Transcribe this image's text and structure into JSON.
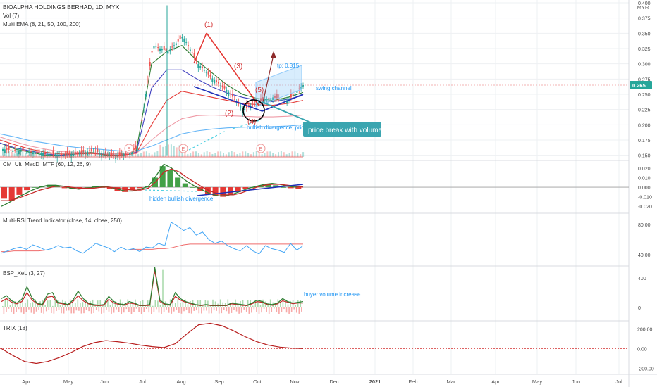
{
  "header": {
    "symbol_title": "BIOALPHA HOLDINGS BERHAD, 1D, MYX",
    "vol_label": "Vol (7)",
    "ema_label": "Multi EMA (8, 21, 50, 100, 200)"
  },
  "currency": "MYR",
  "colors": {
    "up": "#26a69a",
    "down": "#ef5350",
    "trendline_red": "#e53935",
    "trendline_blue": "#1e2fb8",
    "channel": "#90caf9",
    "annotation": "#2196f3",
    "callout": "#3aa5b0",
    "grid": "#eef0f3",
    "axis_text": "#4a4a4a"
  },
  "x_axis": {
    "labels": [
      "Apr",
      "May",
      "Jun",
      "Jul",
      "Aug",
      "Sep",
      "Oct",
      "Nov",
      "Dec",
      "2021",
      "Feb",
      "Mar",
      "Apr",
      "May",
      "Jun",
      "Jul"
    ]
  },
  "chart_data": [
    {
      "type": "line",
      "panel": "price",
      "title": "BIOALPHA HOLDINGS BERHAD, 1D, MYX",
      "y_ticks": [
        0.15,
        0.175,
        0.2,
        0.225,
        0.25,
        0.275,
        0.3,
        0.325,
        0.35,
        0.375,
        0.4
      ],
      "ylim": [
        0.145,
        0.4
      ],
      "last_price": "0.265",
      "annotations": [
        {
          "id": "wave1",
          "text": "(1)"
        },
        {
          "id": "wave2",
          "text": "(2)"
        },
        {
          "id": "wave3",
          "text": "(3)"
        },
        {
          "id": "wave4",
          "text": "(4)"
        },
        {
          "id": "wave5",
          "text": "(5)"
        },
        {
          "id": "target",
          "text": "tp: 0.315"
        },
        {
          "id": "channel",
          "text": "swing channel"
        },
        {
          "id": "divergence",
          "text": "bullish divergence, price"
        },
        {
          "id": "callout",
          "text": "price break with volume"
        }
      ],
      "markers": [
        "E",
        "E",
        "E"
      ],
      "ema_series": [
        {
          "color": "#2e7d32",
          "values": [
            0.17,
            0.16,
            0.155,
            0.15,
            0.15,
            0.152,
            0.155,
            0.15,
            0.15,
            0.158,
            0.3,
            0.32,
            0.33,
            0.305,
            0.285,
            0.265,
            0.25,
            0.243,
            0.24,
            0.245,
            0.253
          ]
        },
        {
          "color": "#3f3fbf",
          "values": [
            0.17,
            0.162,
            0.157,
            0.152,
            0.15,
            0.152,
            0.154,
            0.151,
            0.15,
            0.155,
            0.26,
            0.29,
            0.29,
            0.275,
            0.262,
            0.252,
            0.245,
            0.24,
            0.238,
            0.242,
            0.248
          ]
        },
        {
          "color": "#e53935",
          "values": [
            0.175,
            0.167,
            0.16,
            0.155,
            0.152,
            0.152,
            0.153,
            0.151,
            0.15,
            0.153,
            0.2,
            0.24,
            0.255,
            0.25,
            0.245,
            0.24,
            0.235,
            0.233,
            0.232,
            0.235,
            0.24
          ]
        },
        {
          "color": "#ef9aa6",
          "values": [
            0.18,
            0.172,
            0.165,
            0.16,
            0.156,
            0.155,
            0.154,
            0.153,
            0.152,
            0.153,
            0.175,
            0.195,
            0.21,
            0.215,
            0.216,
            0.215,
            0.214,
            0.213,
            0.213,
            0.214,
            0.216
          ]
        },
        {
          "color": "#64b5f6",
          "values": [
            0.185,
            0.18,
            0.174,
            0.17,
            0.166,
            0.163,
            0.161,
            0.159,
            0.157,
            0.157,
            0.165,
            0.175,
            0.185,
            0.19,
            0.193,
            0.195,
            0.196,
            0.197,
            0.197,
            0.198,
            0.2
          ]
        }
      ],
      "close": [
        0.16,
        0.157,
        0.155,
        0.152,
        0.15,
        0.153,
        0.158,
        0.15,
        0.15,
        0.162,
        0.33,
        0.32,
        0.345,
        0.3,
        0.275,
        0.255,
        0.225,
        0.238,
        0.245,
        0.24,
        0.265
      ]
    },
    {
      "type": "bar",
      "panel": "macd",
      "title": "CM_Ult_MacD_MTF (60, 12, 26, 9)",
      "y_ticks": [
        0.02,
        0.01,
        0.0,
        -0.01,
        -0.02
      ],
      "ylim": [
        -0.025,
        0.028
      ],
      "annotation": "hidden bullish divergence",
      "histogram": [
        -0.012,
        -0.014,
        -0.008,
        -0.003,
        0.0,
        0.001,
        0.002,
        0.001,
        -0.001,
        -0.002,
        -0.001,
        0.0,
        0.001,
        0.0,
        -0.002,
        -0.004,
        -0.005,
        -0.003,
        -0.001,
        0.001,
        0.01,
        0.022,
        0.018,
        0.01,
        0.004,
        0.0,
        -0.004,
        -0.007,
        -0.009,
        -0.01,
        -0.008,
        -0.005,
        -0.002,
        0.0,
        0.002,
        0.003,
        0.002,
        0.0,
        -0.001,
        -0.002
      ],
      "macd_line": [
        -0.02,
        -0.016,
        -0.011,
        -0.007,
        -0.003,
        0.0,
        0.002,
        0.002,
        0.001,
        -0.001,
        -0.002,
        -0.001,
        0.0,
        0.001,
        0.0,
        -0.002,
        -0.004,
        -0.004,
        -0.002,
        0.001,
        0.012,
        0.024,
        0.02,
        0.012,
        0.006,
        0.001,
        -0.003,
        -0.007,
        -0.009,
        -0.009,
        -0.007,
        -0.004,
        -0.001,
        0.001,
        0.003,
        0.004,
        0.003,
        0.001,
        0.0,
        0.001
      ],
      "signal_line": [
        -0.014,
        -0.014,
        -0.012,
        -0.009,
        -0.006,
        -0.003,
        -0.001,
        0.001,
        0.001,
        0.0,
        -0.001,
        -0.001,
        -0.001,
        0.0,
        0.0,
        -0.001,
        -0.002,
        -0.003,
        -0.003,
        -0.001,
        0.006,
        0.016,
        0.019,
        0.016,
        0.01,
        0.005,
        0.0,
        -0.004,
        -0.007,
        -0.008,
        -0.008,
        -0.006,
        -0.003,
        0.0,
        0.002,
        0.003,
        0.003,
        0.002,
        0.001,
        0.0
      ]
    },
    {
      "type": "line",
      "panel": "rsi",
      "title": "Multi-RSI Trend Indicator (close, 14, close, 250)",
      "y_ticks": [
        80.0,
        40.0
      ],
      "ylim": [
        25,
        95
      ],
      "rsi": [
        42,
        45,
        48,
        50,
        47,
        53,
        50,
        46,
        48,
        52,
        49,
        50,
        45,
        42,
        48,
        55,
        52,
        49,
        44,
        50,
        46,
        48,
        44,
        50,
        49,
        55,
        52,
        83,
        78,
        72,
        76,
        66,
        70,
        60,
        55,
        58,
        52,
        48,
        45,
        52,
        45,
        41,
        52,
        48,
        46,
        43,
        55,
        46,
        52
      ],
      "trend": [
        44,
        44,
        45,
        45,
        45,
        45,
        45,
        46,
        46,
        46,
        46,
        46,
        46,
        46,
        46,
        46,
        46,
        46,
        46,
        46,
        46,
        47,
        47,
        47,
        47,
        48,
        48,
        49,
        51,
        53,
        54,
        54,
        54,
        54,
        54,
        54,
        54,
        54,
        54,
        54,
        54,
        54,
        54,
        54,
        54,
        54,
        54,
        54,
        54
      ]
    },
    {
      "type": "bar",
      "panel": "bsp",
      "title": "BSP_XeL (3, 27)",
      "y_ticks": [
        400,
        0
      ],
      "ylim": [
        -180,
        560
      ],
      "annotation": "buyer volume increase",
      "buy_line": [
        120,
        160,
        90,
        60,
        110,
        280,
        130,
        60,
        40,
        180,
        200,
        70,
        60,
        40,
        100,
        220,
        120,
        60,
        40,
        30,
        40,
        150,
        80,
        50,
        40,
        80,
        60,
        30,
        30,
        40,
        600,
        100,
        50,
        40,
        200,
        120,
        80,
        60,
        40,
        30,
        40,
        30,
        30,
        30,
        30,
        60,
        50,
        40,
        30,
        60,
        100,
        80,
        50,
        40,
        60,
        120,
        80,
        60,
        70,
        80
      ],
      "sell_line": [
        80,
        120,
        70,
        50,
        80,
        200,
        100,
        50,
        30,
        140,
        150,
        60,
        50,
        30,
        80,
        160,
        90,
        50,
        30,
        25,
        30,
        110,
        60,
        40,
        30,
        60,
        50,
        25,
        25,
        30,
        500,
        80,
        40,
        30,
        150,
        100,
        70,
        50,
        35,
        25,
        35,
        25,
        25,
        25,
        25,
        50,
        40,
        30,
        25,
        50,
        80,
        70,
        40,
        30,
        50,
        90,
        70,
        50,
        60,
        60
      ]
    },
    {
      "type": "line",
      "panel": "trix",
      "title": "TRIX (18)",
      "y_ticks": [
        200.0,
        0.0,
        -200.0
      ],
      "ylim": [
        -260,
        280
      ],
      "values": [
        0,
        -70,
        -130,
        -150,
        -130,
        -90,
        -40,
        20,
        60,
        80,
        70,
        55,
        35,
        20,
        10,
        50,
        150,
        240,
        255,
        230,
        180,
        120,
        70,
        35,
        15,
        5,
        0
      ]
    }
  ]
}
